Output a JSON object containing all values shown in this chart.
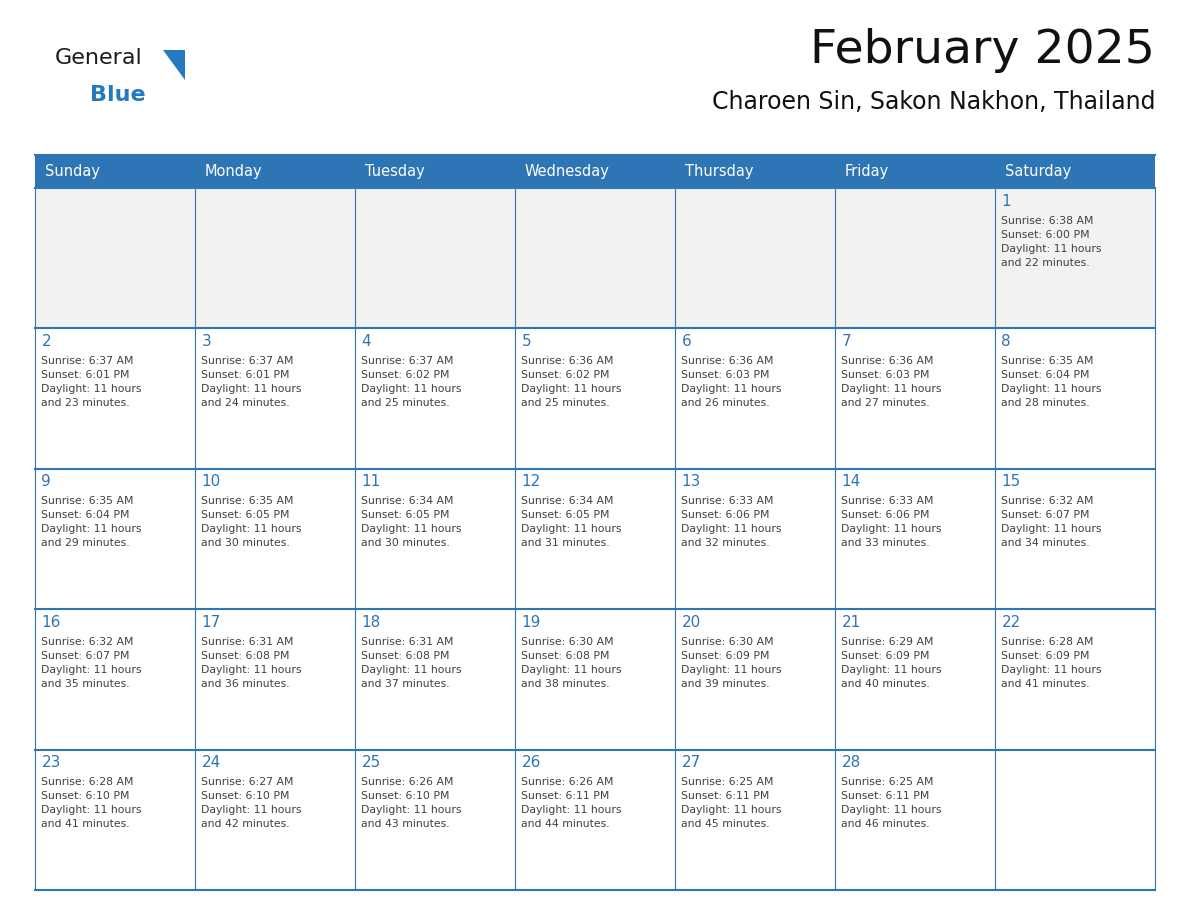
{
  "title": "February 2025",
  "subtitle": "Charoen Sin, Sakon Nakhon, Thailand",
  "header_color": "#2E75B6",
  "header_text_color": "#FFFFFF",
  "cell_bg_color": "#FFFFFF",
  "cell_alt_bg_color": "#F2F2F2",
  "grid_line_color": "#2E75B6",
  "day_number_color": "#2E75B6",
  "cell_text_color": "#404040",
  "days_of_week": [
    "Sunday",
    "Monday",
    "Tuesday",
    "Wednesday",
    "Thursday",
    "Friday",
    "Saturday"
  ],
  "weeks": [
    [
      {
        "day": "",
        "info": ""
      },
      {
        "day": "",
        "info": ""
      },
      {
        "day": "",
        "info": ""
      },
      {
        "day": "",
        "info": ""
      },
      {
        "day": "",
        "info": ""
      },
      {
        "day": "",
        "info": ""
      },
      {
        "day": "1",
        "info": "Sunrise: 6:38 AM\nSunset: 6:00 PM\nDaylight: 11 hours\nand 22 minutes."
      }
    ],
    [
      {
        "day": "2",
        "info": "Sunrise: 6:37 AM\nSunset: 6:01 PM\nDaylight: 11 hours\nand 23 minutes."
      },
      {
        "day": "3",
        "info": "Sunrise: 6:37 AM\nSunset: 6:01 PM\nDaylight: 11 hours\nand 24 minutes."
      },
      {
        "day": "4",
        "info": "Sunrise: 6:37 AM\nSunset: 6:02 PM\nDaylight: 11 hours\nand 25 minutes."
      },
      {
        "day": "5",
        "info": "Sunrise: 6:36 AM\nSunset: 6:02 PM\nDaylight: 11 hours\nand 25 minutes."
      },
      {
        "day": "6",
        "info": "Sunrise: 6:36 AM\nSunset: 6:03 PM\nDaylight: 11 hours\nand 26 minutes."
      },
      {
        "day": "7",
        "info": "Sunrise: 6:36 AM\nSunset: 6:03 PM\nDaylight: 11 hours\nand 27 minutes."
      },
      {
        "day": "8",
        "info": "Sunrise: 6:35 AM\nSunset: 6:04 PM\nDaylight: 11 hours\nand 28 minutes."
      }
    ],
    [
      {
        "day": "9",
        "info": "Sunrise: 6:35 AM\nSunset: 6:04 PM\nDaylight: 11 hours\nand 29 minutes."
      },
      {
        "day": "10",
        "info": "Sunrise: 6:35 AM\nSunset: 6:05 PM\nDaylight: 11 hours\nand 30 minutes."
      },
      {
        "day": "11",
        "info": "Sunrise: 6:34 AM\nSunset: 6:05 PM\nDaylight: 11 hours\nand 30 minutes."
      },
      {
        "day": "12",
        "info": "Sunrise: 6:34 AM\nSunset: 6:05 PM\nDaylight: 11 hours\nand 31 minutes."
      },
      {
        "day": "13",
        "info": "Sunrise: 6:33 AM\nSunset: 6:06 PM\nDaylight: 11 hours\nand 32 minutes."
      },
      {
        "day": "14",
        "info": "Sunrise: 6:33 AM\nSunset: 6:06 PM\nDaylight: 11 hours\nand 33 minutes."
      },
      {
        "day": "15",
        "info": "Sunrise: 6:32 AM\nSunset: 6:07 PM\nDaylight: 11 hours\nand 34 minutes."
      }
    ],
    [
      {
        "day": "16",
        "info": "Sunrise: 6:32 AM\nSunset: 6:07 PM\nDaylight: 11 hours\nand 35 minutes."
      },
      {
        "day": "17",
        "info": "Sunrise: 6:31 AM\nSunset: 6:08 PM\nDaylight: 11 hours\nand 36 minutes."
      },
      {
        "day": "18",
        "info": "Sunrise: 6:31 AM\nSunset: 6:08 PM\nDaylight: 11 hours\nand 37 minutes."
      },
      {
        "day": "19",
        "info": "Sunrise: 6:30 AM\nSunset: 6:08 PM\nDaylight: 11 hours\nand 38 minutes."
      },
      {
        "day": "20",
        "info": "Sunrise: 6:30 AM\nSunset: 6:09 PM\nDaylight: 11 hours\nand 39 minutes."
      },
      {
        "day": "21",
        "info": "Sunrise: 6:29 AM\nSunset: 6:09 PM\nDaylight: 11 hours\nand 40 minutes."
      },
      {
        "day": "22",
        "info": "Sunrise: 6:28 AM\nSunset: 6:09 PM\nDaylight: 11 hours\nand 41 minutes."
      }
    ],
    [
      {
        "day": "23",
        "info": "Sunrise: 6:28 AM\nSunset: 6:10 PM\nDaylight: 11 hours\nand 41 minutes."
      },
      {
        "day": "24",
        "info": "Sunrise: 6:27 AM\nSunset: 6:10 PM\nDaylight: 11 hours\nand 42 minutes."
      },
      {
        "day": "25",
        "info": "Sunrise: 6:26 AM\nSunset: 6:10 PM\nDaylight: 11 hours\nand 43 minutes."
      },
      {
        "day": "26",
        "info": "Sunrise: 6:26 AM\nSunset: 6:11 PM\nDaylight: 11 hours\nand 44 minutes."
      },
      {
        "day": "27",
        "info": "Sunrise: 6:25 AM\nSunset: 6:11 PM\nDaylight: 11 hours\nand 45 minutes."
      },
      {
        "day": "28",
        "info": "Sunrise: 6:25 AM\nSunset: 6:11 PM\nDaylight: 11 hours\nand 46 minutes."
      },
      {
        "day": "",
        "info": ""
      }
    ]
  ],
  "logo_text_general": "General",
  "logo_text_blue": "Blue",
  "logo_color_general": "#1a1a1a",
  "logo_color_blue": "#2479C0",
  "logo_triangle_color": "#2479C0",
  "fig_width": 11.88,
  "fig_height": 9.18,
  "dpi": 100
}
